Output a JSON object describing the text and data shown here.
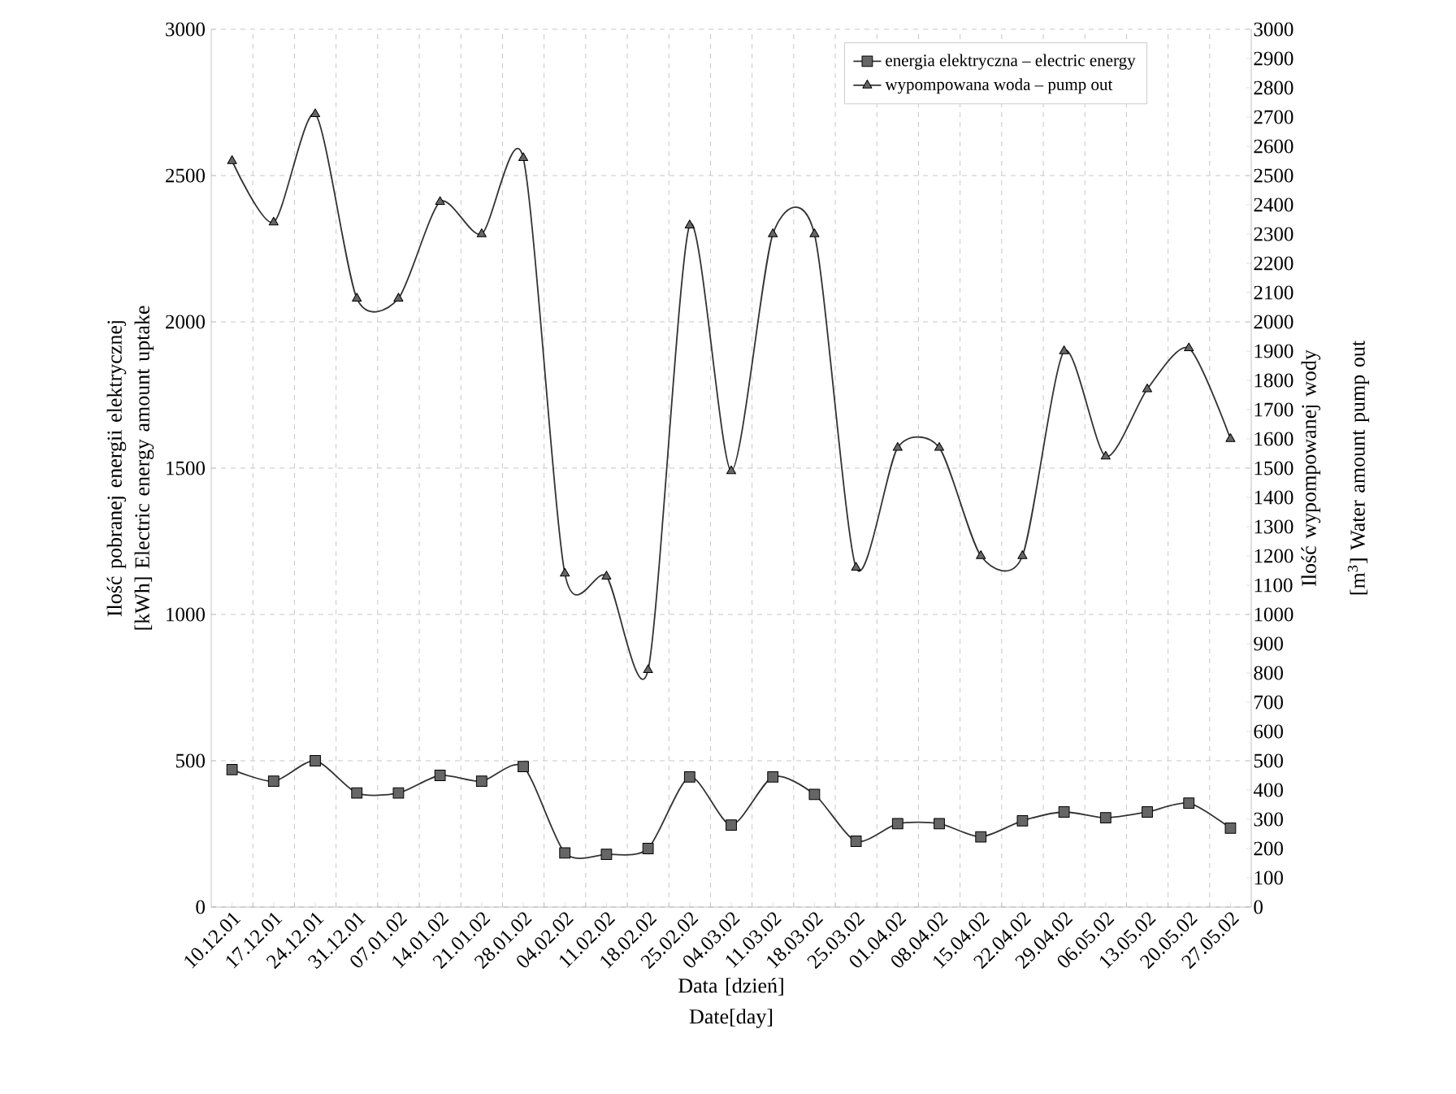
{
  "chart_data": {
    "type": "line",
    "xlabel": "Data [dzień] Date[day]",
    "ylabel": "Ilość pobranej energii elektrycznej [kWh] Electric energy amount uptake",
    "y2label": "Ilość wypompowanej wody [m$^{3}$] Water amount pump out",
    "categories": [
      "10.12.01",
      "17.12.01",
      "24.12.01",
      "31.12.01",
      "07.01.02",
      "14.01.02",
      "21.01.02",
      "28.01.02",
      "04.02.02",
      "11.02.02",
      "18.02.02",
      "25.02.02",
      "04.03.02",
      "11.03.02",
      "18.03.02",
      "25.03.02",
      "01.04.02",
      "08.04.02",
      "15.04.02",
      "22.04.02",
      "29.04.02",
      "06.05.02",
      "13.05.02",
      "20.05.02",
      "27.05.02"
    ],
    "series": [
      {
        "name": "energia elektryczna – electric energy",
        "color": "#333333",
        "marker": "square",
        "values": [
          470,
          430,
          500,
          390,
          390,
          450,
          430,
          480,
          185,
          180,
          200,
          445,
          280,
          445,
          385,
          225,
          285,
          285,
          240,
          295,
          325,
          305,
          325,
          355,
          270
        ]
      },
      {
        "name": "wypompowana woda – pump out",
        "color": "#333333",
        "marker": "triangle",
        "axis": "y2",
        "values": [
          2550,
          2340,
          2710,
          2080,
          2080,
          2410,
          2300,
          2560,
          1140,
          1130,
          810,
          2330,
          1490,
          2300,
          2300,
          1160,
          1570,
          1570,
          1200,
          1200,
          1900,
          1540,
          1770,
          1910,
          1600
        ]
      }
    ],
    "ylim": [
      0,
      3000
    ],
    "yticks": [
      0,
      500,
      1000,
      1500,
      2000,
      2500,
      3000
    ],
    "y2lim": [
      0,
      3000
    ],
    "y2ticks": [
      0,
      100,
      200,
      300,
      400,
      500,
      600,
      700,
      800,
      900,
      1000,
      1100,
      1200,
      1300,
      1400,
      1500,
      1600,
      1700,
      1800,
      1900,
      2000,
      2100,
      2200,
      2300,
      2400,
      2500,
      2600,
      2700,
      2800,
      2900,
      3000
    ],
    "grid": true,
    "legend": "top right",
    "line_style": "solid"
  }
}
